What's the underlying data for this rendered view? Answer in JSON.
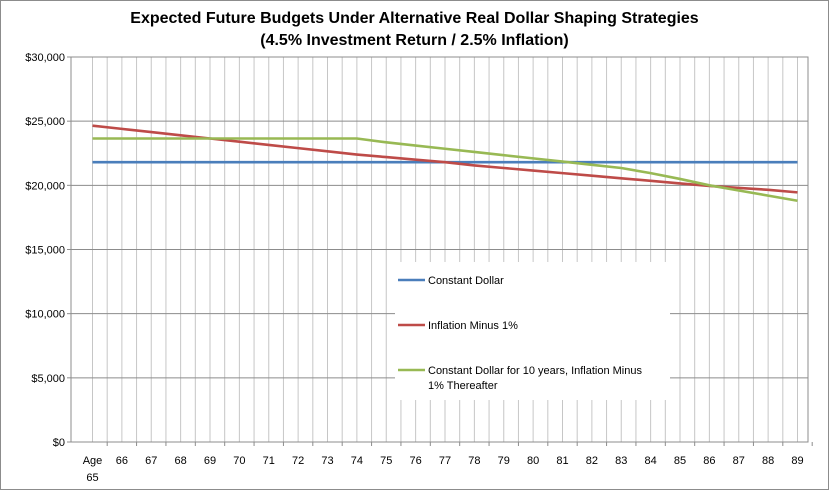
{
  "chart_data": {
    "type": "line",
    "title": "Expected Future Budgets Under Alternative Real Dollar Shaping Strategies",
    "subtitle": "(4.5% Investment Return / 2.5% Inflation)",
    "x_labels": [
      "Age",
      "66",
      "67",
      "68",
      "69",
      "70",
      "71",
      "72",
      "73",
      "74",
      "75",
      "76",
      "77",
      "78",
      "79",
      "80",
      "81",
      "82",
      "83",
      "84",
      "85",
      "86",
      "87",
      "88",
      "89"
    ],
    "x_first_sublabel": "65",
    "y_ticks": [
      "$0",
      "$5,000",
      "$10,000",
      "$15,000",
      "$20,000",
      "$25,000",
      "$30,000"
    ],
    "ylim": [
      0,
      30000
    ],
    "grid": true,
    "legend_position": "center-right",
    "series": [
      {
        "name": "Constant Dollar",
        "color": "#4a7ebb",
        "values": [
          21800,
          21800,
          21800,
          21800,
          21800,
          21800,
          21800,
          21800,
          21800,
          21800,
          21800,
          21800,
          21800,
          21800,
          21800,
          21800,
          21800,
          21800,
          21800,
          21800,
          21800,
          21800,
          21800,
          21800,
          21800
        ]
      },
      {
        "name": "Inflation Minus 1%",
        "color": "#be4b48",
        "values": [
          24650,
          24400,
          24150,
          23900,
          23650,
          23400,
          23150,
          22900,
          22650,
          22400,
          22200,
          22000,
          21800,
          21550,
          21350,
          21150,
          20950,
          20750,
          20550,
          20350,
          20150,
          19950,
          19800,
          19650,
          19450
        ]
      },
      {
        "name": "Constant Dollar for 10 years, Inflation Minus 1% Thereafter",
        "legend_lines": [
          "Constant Dollar for 10 years, Inflation Minus",
          "1% Thereafter"
        ],
        "color": "#98b954",
        "values": [
          23650,
          23650,
          23650,
          23650,
          23650,
          23650,
          23650,
          23650,
          23650,
          23650,
          23350,
          23100,
          22850,
          22600,
          22350,
          22100,
          21850,
          21600,
          21350,
          20950,
          20500,
          20000,
          19600,
          19200,
          18800
        ]
      }
    ]
  }
}
